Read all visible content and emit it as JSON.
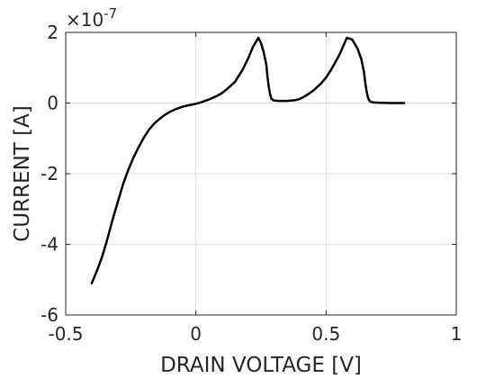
{
  "chart_data": {
    "type": "line",
    "title": "",
    "xlabel": "DRAIN VOLTAGE  [V]",
    "ylabel": "CURRENT  [A]",
    "xlim": [
      -0.5,
      1
    ],
    "ylim": [
      -6,
      2
    ],
    "y_multiplier": "×10",
    "y_exponent": "-7",
    "x_ticks": [
      -0.5,
      0,
      0.5,
      1
    ],
    "x_tick_labels": [
      "-0.5",
      "0",
      "0.5",
      "1"
    ],
    "y_ticks": [
      -6,
      -4,
      -2,
      0,
      2
    ],
    "y_tick_labels": [
      "-6",
      "-4",
      "-2",
      "0",
      "2"
    ],
    "grid": true,
    "line_color": "#000000",
    "series": [
      {
        "x": [
          -0.4,
          -0.38,
          -0.36,
          -0.34,
          -0.32,
          -0.3,
          -0.28,
          -0.26,
          -0.24,
          -0.22,
          -0.2,
          -0.18,
          -0.16,
          -0.14,
          -0.12,
          -0.1,
          -0.08,
          -0.05,
          -0.02,
          0,
          0.02,
          0.05,
          0.08,
          0.1,
          0.12,
          0.15,
          0.18,
          0.2,
          0.22,
          0.24,
          0.25,
          0.26,
          0.27,
          0.275,
          0.28,
          0.285,
          0.29,
          0.3,
          0.32,
          0.35,
          0.38,
          0.4,
          0.42,
          0.45,
          0.48,
          0.5,
          0.52,
          0.55,
          0.58,
          0.6,
          0.62,
          0.635,
          0.645,
          0.65,
          0.655,
          0.66,
          0.665,
          0.67,
          0.68,
          0.7,
          0.75,
          0.8
        ],
        "y": [
          -5.1,
          -4.75,
          -4.35,
          -3.85,
          -3.3,
          -2.8,
          -2.3,
          -1.9,
          -1.55,
          -1.25,
          -0.98,
          -0.75,
          -0.58,
          -0.45,
          -0.34,
          -0.25,
          -0.18,
          -0.1,
          -0.05,
          -0.02,
          0.02,
          0.1,
          0.2,
          0.28,
          0.4,
          0.6,
          0.95,
          1.25,
          1.6,
          1.85,
          1.7,
          1.45,
          1.1,
          0.75,
          0.45,
          0.25,
          0.12,
          0.07,
          0.06,
          0.06,
          0.08,
          0.12,
          0.2,
          0.35,
          0.55,
          0.72,
          0.95,
          1.35,
          1.85,
          1.8,
          1.55,
          1.25,
          0.9,
          0.6,
          0.35,
          0.18,
          0.08,
          0.04,
          0.02,
          0.01,
          0.0,
          0.0
        ]
      }
    ]
  }
}
